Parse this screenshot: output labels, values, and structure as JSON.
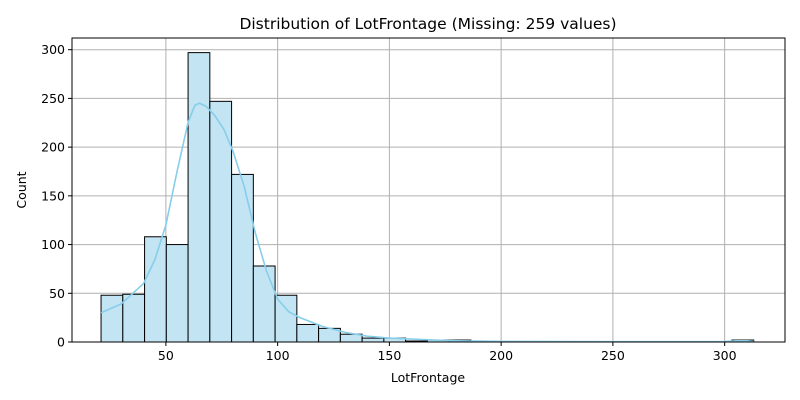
{
  "chart_data": {
    "type": "bar",
    "title": "Distribution of LotFrontage (Missing: 259 values)",
    "xlabel": "LotFrontage",
    "ylabel": "Count",
    "xlim": [
      8,
      327
    ],
    "ylim": [
      0,
      312
    ],
    "x_ticks": [
      50,
      100,
      150,
      200,
      250,
      300
    ],
    "y_ticks": [
      0,
      50,
      100,
      150,
      200,
      250,
      300
    ],
    "grid": true,
    "bins": {
      "start": 21,
      "width": 9.7333,
      "counts": [
        48,
        49,
        108,
        100,
        297,
        247,
        172,
        78,
        48,
        18,
        14,
        8,
        4,
        4,
        1,
        2,
        2,
        1,
        0,
        0,
        0,
        0,
        0,
        0,
        0,
        0,
        0,
        0,
        0,
        2
      ]
    },
    "kde": {
      "x": [
        21,
        30,
        40,
        45,
        50,
        55,
        60,
        63,
        65,
        68,
        72,
        76,
        80,
        85,
        90,
        95,
        100,
        105,
        110,
        120,
        130,
        140,
        150,
        160,
        170,
        180,
        200,
        250,
        300,
        305,
        310,
        313
      ],
      "y": [
        30,
        39,
        60,
        84,
        120,
        175,
        226,
        243,
        245,
        242,
        232,
        218,
        196,
        160,
        112,
        73,
        44,
        31,
        25,
        16,
        10,
        6,
        4,
        3,
        2,
        1.2,
        0.6,
        0.3,
        0.5,
        1.2,
        1.2,
        0.6
      ]
    },
    "colors": {
      "bar_fill": "#c2e4f3",
      "bar_edge": "#000000",
      "kde_line": "#87ceeb",
      "grid": "#b0b0b0"
    }
  }
}
